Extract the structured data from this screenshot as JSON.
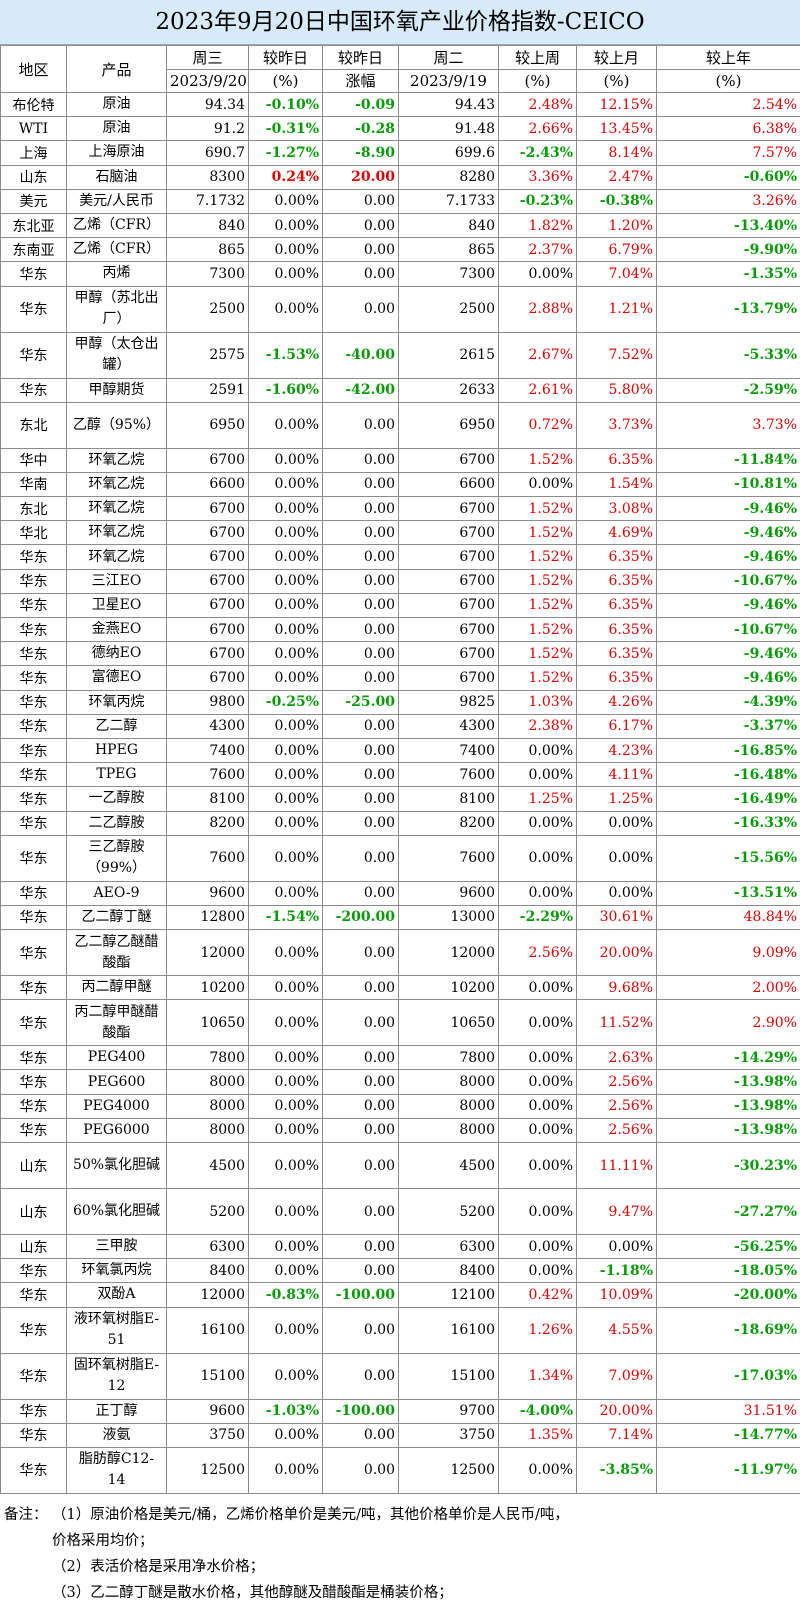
{
  "title": "2023年9月20日中国环氧产业价格指数-CEICO",
  "header": {
    "region": "地区",
    "product": "产品",
    "wed": "周三",
    "wed_date": "2023/9/20",
    "dod_pct": "较昨日",
    "dod_pct_unit": "(%)",
    "dod_amt": "较昨日",
    "dod_amt_unit": "涨幅",
    "tue": "周二",
    "tue_date": "2023/9/19",
    "wow": "较上周",
    "wow_unit": "(%)",
    "mom": "较上月",
    "mom_unit": "(%)",
    "yoy": "较上年",
    "yoy_unit": "(%)"
  },
  "rows": [
    {
      "region": "布伦特",
      "product": "原油",
      "wed": "94.34",
      "dod_pct": "-0.10%",
      "dod_amt": "-0.09",
      "tue": "94.43",
      "wow": "2.48%",
      "mom": "12.15%",
      "yoy": "2.54%"
    },
    {
      "region": "WTI",
      "product": "原油",
      "wed": "91.2",
      "dod_pct": "-0.31%",
      "dod_amt": "-0.28",
      "tue": "91.48",
      "wow": "2.66%",
      "mom": "13.45%",
      "yoy": "6.38%"
    },
    {
      "region": "上海",
      "product": "上海原油",
      "wed": "690.7",
      "dod_pct": "-1.27%",
      "dod_amt": "-8.90",
      "tue": "699.6",
      "wow": "-2.43%",
      "mom": "8.14%",
      "yoy": "7.57%"
    },
    {
      "region": "山东",
      "product": "石脑油",
      "wed": "8300",
      "dod_pct": "0.24%",
      "dod_amt": "20.00",
      "tue": "8280",
      "wow": "3.36%",
      "mom": "2.47%",
      "yoy": "-0.60%"
    },
    {
      "region": "美元",
      "product": "美元/人民币",
      "wed": "7.1732",
      "dod_pct": "0.00%",
      "dod_amt": "0.00",
      "tue": "7.1733",
      "wow": "-0.23%",
      "mom": "-0.38%",
      "yoy": "3.26%"
    },
    {
      "region": "东北亚",
      "product": "乙烯（CFR）",
      "wed": "840",
      "dod_pct": "0.00%",
      "dod_amt": "0.00",
      "tue": "840",
      "wow": "1.82%",
      "mom": "1.20%",
      "yoy": "-13.40%"
    },
    {
      "region": "东南亚",
      "product": "乙烯（CFR）",
      "wed": "865",
      "dod_pct": "0.00%",
      "dod_amt": "0.00",
      "tue": "865",
      "wow": "2.37%",
      "mom": "6.79%",
      "yoy": "-9.90%"
    },
    {
      "region": "华东",
      "product": "丙烯",
      "wed": "7300",
      "dod_pct": "0.00%",
      "dod_amt": "0.00",
      "tue": "7300",
      "wow": "0.00%",
      "mom": "7.04%",
      "yoy": "-1.35%"
    },
    {
      "region": "华东",
      "product": "甲醇（苏北出厂）",
      "wed": "2500",
      "dod_pct": "0.00%",
      "dod_amt": "0.00",
      "tue": "2500",
      "wow": "2.88%",
      "mom": "1.21%",
      "yoy": "-13.79%"
    },
    {
      "region": "华东",
      "product": "甲醇（太仓出罐）",
      "wed": "2575",
      "dod_pct": "-1.53%",
      "dod_amt": "-40.00",
      "tue": "2615",
      "wow": "2.67%",
      "mom": "7.52%",
      "yoy": "-5.33%"
    },
    {
      "region": "华东",
      "product": "甲醇期货",
      "wed": "2591",
      "dod_pct": "-1.60%",
      "dod_amt": "-42.00",
      "tue": "2633",
      "wow": "2.61%",
      "mom": "5.80%",
      "yoy": "-2.59%"
    },
    {
      "region": "东北",
      "product": "乙醇（95%）",
      "wed": "6950",
      "dod_pct": "0.00%",
      "dod_amt": "0.00",
      "tue": "6950",
      "wow": "0.72%",
      "mom": "3.73%",
      "yoy": "3.73%"
    },
    {
      "region": "华中",
      "product": "环氧乙烷",
      "wed": "6700",
      "dod_pct": "0.00%",
      "dod_amt": "0.00",
      "tue": "6700",
      "wow": "1.52%",
      "mom": "6.35%",
      "yoy": "-11.84%"
    },
    {
      "region": "华南",
      "product": "环氧乙烷",
      "wed": "6600",
      "dod_pct": "0.00%",
      "dod_amt": "0.00",
      "tue": "6600",
      "wow": "0.00%",
      "mom": "1.54%",
      "yoy": "-10.81%"
    },
    {
      "region": "东北",
      "product": "环氧乙烷",
      "wed": "6700",
      "dod_pct": "0.00%",
      "dod_amt": "0.00",
      "tue": "6700",
      "wow": "1.52%",
      "mom": "3.08%",
      "yoy": "-9.46%"
    },
    {
      "region": "华北",
      "product": "环氧乙烷",
      "wed": "6700",
      "dod_pct": "0.00%",
      "dod_amt": "0.00",
      "tue": "6700",
      "wow": "1.52%",
      "mom": "4.69%",
      "yoy": "-9.46%"
    },
    {
      "region": "华东",
      "product": "环氧乙烷",
      "wed": "6700",
      "dod_pct": "0.00%",
      "dod_amt": "0.00",
      "tue": "6700",
      "wow": "1.52%",
      "mom": "6.35%",
      "yoy": "-9.46%"
    },
    {
      "region": "华东",
      "product": "三江EO",
      "wed": "6700",
      "dod_pct": "0.00%",
      "dod_amt": "0.00",
      "tue": "6700",
      "wow": "1.52%",
      "mom": "6.35%",
      "yoy": "-10.67%"
    },
    {
      "region": "华东",
      "product": "卫星EO",
      "wed": "6700",
      "dod_pct": "0.00%",
      "dod_amt": "0.00",
      "tue": "6700",
      "wow": "1.52%",
      "mom": "6.35%",
      "yoy": "-9.46%"
    },
    {
      "region": "华东",
      "product": "金燕EO",
      "wed": "6700",
      "dod_pct": "0.00%",
      "dod_amt": "0.00",
      "tue": "6700",
      "wow": "1.52%",
      "mom": "6.35%",
      "yoy": "-10.67%"
    },
    {
      "region": "华东",
      "product": "德纳EO",
      "wed": "6700",
      "dod_pct": "0.00%",
      "dod_amt": "0.00",
      "tue": "6700",
      "wow": "1.52%",
      "mom": "6.35%",
      "yoy": "-9.46%"
    },
    {
      "region": "华东",
      "product": "富德EO",
      "wed": "6700",
      "dod_pct": "0.00%",
      "dod_amt": "0.00",
      "tue": "6700",
      "wow": "1.52%",
      "mom": "6.35%",
      "yoy": "-9.46%"
    },
    {
      "region": "华东",
      "product": "环氧丙烷",
      "wed": "9800",
      "dod_pct": "-0.25%",
      "dod_amt": "-25.00",
      "tue": "9825",
      "wow": "1.03%",
      "mom": "4.26%",
      "yoy": "-4.39%"
    },
    {
      "region": "华东",
      "product": "乙二醇",
      "wed": "4300",
      "dod_pct": "0.00%",
      "dod_amt": "0.00",
      "tue": "4300",
      "wow": "2.38%",
      "mom": "6.17%",
      "yoy": "-3.37%"
    },
    {
      "region": "华东",
      "product": "HPEG",
      "wed": "7400",
      "dod_pct": "0.00%",
      "dod_amt": "0.00",
      "tue": "7400",
      "wow": "0.00%",
      "mom": "4.23%",
      "yoy": "-16.85%"
    },
    {
      "region": "华东",
      "product": "TPEG",
      "wed": "7600",
      "dod_pct": "0.00%",
      "dod_amt": "0.00",
      "tue": "7600",
      "wow": "0.00%",
      "mom": "4.11%",
      "yoy": "-16.48%"
    },
    {
      "region": "华东",
      "product": "一乙醇胺",
      "wed": "8100",
      "dod_pct": "0.00%",
      "dod_amt": "0.00",
      "tue": "8100",
      "wow": "1.25%",
      "mom": "1.25%",
      "yoy": "-16.49%"
    },
    {
      "region": "华东",
      "product": "二乙醇胺",
      "wed": "8200",
      "dod_pct": "0.00%",
      "dod_amt": "0.00",
      "tue": "8200",
      "wow": "0.00%",
      "mom": "0.00%",
      "yoy": "-16.33%"
    },
    {
      "region": "华东",
      "product": "三乙醇胺（99%）",
      "wed": "7600",
      "dod_pct": "0.00%",
      "dod_amt": "0.00",
      "tue": "7600",
      "wow": "0.00%",
      "mom": "0.00%",
      "yoy": "-15.56%"
    },
    {
      "region": "华东",
      "product": "AEO-9",
      "wed": "9600",
      "dod_pct": "0.00%",
      "dod_amt": "0.00",
      "tue": "9600",
      "wow": "0.00%",
      "mom": "0.00%",
      "yoy": "-13.51%"
    },
    {
      "region": "华东",
      "product": "乙二醇丁醚",
      "wed": "12800",
      "dod_pct": "-1.54%",
      "dod_amt": "-200.00",
      "tue": "13000",
      "wow": "-2.29%",
      "mom": "30.61%",
      "yoy": "48.84%"
    },
    {
      "region": "华东",
      "product": "乙二醇乙醚醋酸酯",
      "wed": "12000",
      "dod_pct": "0.00%",
      "dod_amt": "0.00",
      "tue": "12000",
      "wow": "2.56%",
      "mom": "20.00%",
      "yoy": "9.09%"
    },
    {
      "region": "华东",
      "product": "丙二醇甲醚",
      "wed": "10200",
      "dod_pct": "0.00%",
      "dod_amt": "0.00",
      "tue": "10200",
      "wow": "0.00%",
      "mom": "9.68%",
      "yoy": "2.00%"
    },
    {
      "region": "华东",
      "product": "丙二醇甲醚醋酸酯",
      "wed": "10650",
      "dod_pct": "0.00%",
      "dod_amt": "0.00",
      "tue": "10650",
      "wow": "0.00%",
      "mom": "11.52%",
      "yoy": "2.90%"
    },
    {
      "region": "华东",
      "product": "PEG400",
      "wed": "7800",
      "dod_pct": "0.00%",
      "dod_amt": "0.00",
      "tue": "7800",
      "wow": "0.00%",
      "mom": "2.63%",
      "yoy": "-14.29%"
    },
    {
      "region": "华东",
      "product": "PEG600",
      "wed": "8000",
      "dod_pct": "0.00%",
      "dod_amt": "0.00",
      "tue": "8000",
      "wow": "0.00%",
      "mom": "2.56%",
      "yoy": "-13.98%"
    },
    {
      "region": "华东",
      "product": "PEG4000",
      "wed": "8000",
      "dod_pct": "0.00%",
      "dod_amt": "0.00",
      "tue": "8000",
      "wow": "0.00%",
      "mom": "2.56%",
      "yoy": "-13.98%"
    },
    {
      "region": "华东",
      "product": "PEG6000",
      "wed": "8000",
      "dod_pct": "0.00%",
      "dod_amt": "0.00",
      "tue": "8000",
      "wow": "0.00%",
      "mom": "2.56%",
      "yoy": "-13.98%"
    },
    {
      "region": "山东",
      "product": "50%氯化胆碱",
      "wed": "4500",
      "dod_pct": "0.00%",
      "dod_amt": "0.00",
      "tue": "4500",
      "wow": "0.00%",
      "mom": "11.11%",
      "yoy": "-30.23%"
    },
    {
      "region": "山东",
      "product": "60%氯化胆碱",
      "wed": "5200",
      "dod_pct": "0.00%",
      "dod_amt": "0.00",
      "tue": "5200",
      "wow": "0.00%",
      "mom": "9.47%",
      "yoy": "-27.27%"
    },
    {
      "region": "山东",
      "product": "三甲胺",
      "wed": "6300",
      "dod_pct": "0.00%",
      "dod_amt": "0.00",
      "tue": "6300",
      "wow": "0.00%",
      "mom": "0.00%",
      "yoy": "-56.25%"
    },
    {
      "region": "华东",
      "product": "环氧氯丙烷",
      "wed": "8400",
      "dod_pct": "0.00%",
      "dod_amt": "0.00",
      "tue": "8400",
      "wow": "0.00%",
      "mom": "-1.18%",
      "yoy": "-18.05%"
    },
    {
      "region": "华东",
      "product": "双酚A",
      "wed": "12000",
      "dod_pct": "-0.83%",
      "dod_amt": "-100.00",
      "tue": "12100",
      "wow": "0.42%",
      "mom": "10.09%",
      "yoy": "-20.00%"
    },
    {
      "region": "华东",
      "product": "液环氧树脂E-51",
      "wed": "16100",
      "dod_pct": "0.00%",
      "dod_amt": "0.00",
      "tue": "16100",
      "wow": "1.26%",
      "mom": "4.55%",
      "yoy": "-18.69%"
    },
    {
      "region": "华东",
      "product": "固环氧树脂E-12",
      "wed": "15100",
      "dod_pct": "0.00%",
      "dod_amt": "0.00",
      "tue": "15100",
      "wow": "1.34%",
      "mom": "7.09%",
      "yoy": "-17.03%"
    },
    {
      "region": "华东",
      "product": "正丁醇",
      "wed": "9600",
      "dod_pct": "-1.03%",
      "dod_amt": "-100.00",
      "tue": "9700",
      "wow": "-4.00%",
      "mom": "20.00%",
      "yoy": "31.51%"
    },
    {
      "region": "华东",
      "product": "液氨",
      "wed": "3750",
      "dod_pct": "0.00%",
      "dod_amt": "0.00",
      "tue": "3750",
      "wow": "1.35%",
      "mom": "7.14%",
      "yoy": "-14.77%"
    },
    {
      "region": "华东",
      "product": "脂肪醇C12-14",
      "wed": "12500",
      "dod_pct": "0.00%",
      "dod_amt": "0.00",
      "tue": "12500",
      "wow": "0.00%",
      "mom": "-3.85%",
      "yoy": "-11.97%"
    }
  ],
  "notes": {
    "prefix": "备注：",
    "n1a": "（1）原油价格是美元/桶，乙烯价格单价是美元/吨，其他价格单价是人民币/吨，",
    "n1b": "价格采用均价；",
    "n2": "（2）表活价格是采用净水价格；",
    "n3": "（3）乙二醇丁醚是散水价格，其他醇醚及醋酸酯是桶装价格；"
  },
  "colors": {
    "positive": "#e00000",
    "negative": "#079b07",
    "title_bg": "#d6eaf8",
    "grid": "#8c8c8c"
  }
}
